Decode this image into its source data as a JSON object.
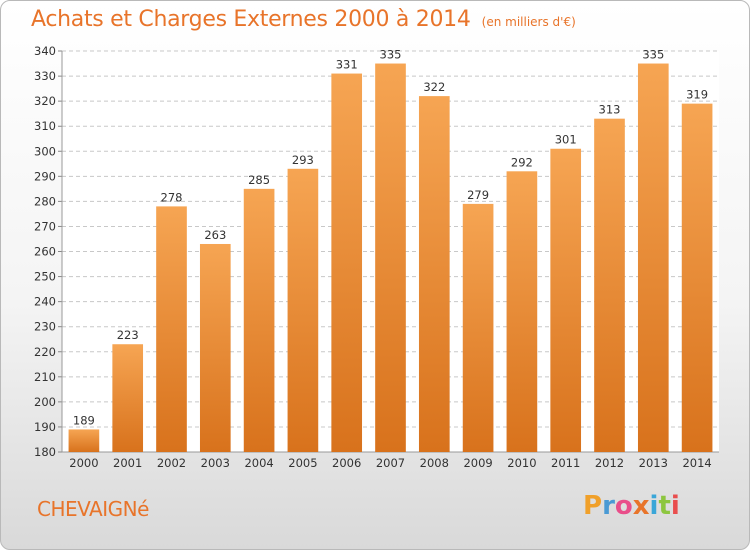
{
  "header": {
    "title": "Achats et Charges Externes 2000 à 2014",
    "unit": "(en milliers d'€)"
  },
  "footer": {
    "place": "CHEVAIGNé",
    "logo_letters": [
      "P",
      "r",
      "o",
      "x",
      "i",
      "t",
      "i"
    ]
  },
  "colors": {
    "accent": "#e8742a",
    "bar_light": "#f6a553",
    "bar_dark": "#d8721c",
    "logo": [
      "#f0a02a",
      "#4a9ad4",
      "#e94e8a",
      "#e8742a",
      "#3aa6d8",
      "#8dc63f",
      "#e94e4e"
    ]
  },
  "chart_data": {
    "type": "bar",
    "categories": [
      "2000",
      "2001",
      "2002",
      "2003",
      "2004",
      "2005",
      "2006",
      "2007",
      "2008",
      "2009",
      "2010",
      "2011",
      "2012",
      "2013",
      "2014"
    ],
    "values": [
      189,
      223,
      278,
      263,
      285,
      293,
      331,
      335,
      322,
      279,
      292,
      301,
      313,
      335,
      319
    ],
    "ylim": [
      180,
      340
    ],
    "yticks": [
      180,
      190,
      200,
      210,
      220,
      230,
      240,
      250,
      260,
      270,
      280,
      290,
      300,
      310,
      320,
      330,
      340
    ],
    "grid": true,
    "value_labels": [
      "189",
      "223",
      "278",
      "263",
      "285",
      "293",
      "331",
      "335",
      "322",
      "279",
      "292",
      "301",
      "313",
      "335",
      "319"
    ]
  }
}
